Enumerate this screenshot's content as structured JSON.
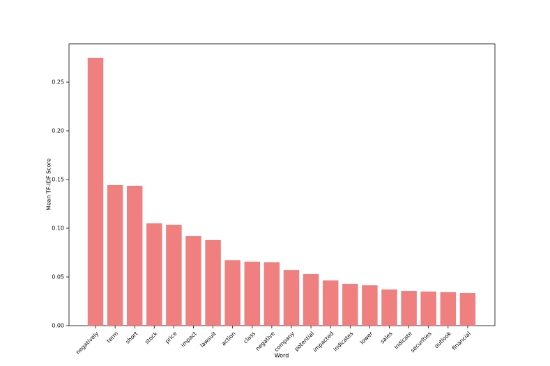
{
  "chart_data": {
    "type": "bar",
    "xlabel": "Word",
    "ylabel": "Mean TF-IDF Score",
    "color": "#f08080",
    "categories": [
      "negatively",
      "term",
      "short",
      "stock",
      "price",
      "impact",
      "lawsuit",
      "action",
      "class",
      "negative",
      "company",
      "potential",
      "impacted",
      "indicates",
      "lower",
      "sales",
      "indicate",
      "securities",
      "outlook",
      "financial"
    ],
    "values": [
      0.275,
      0.1443,
      0.1436,
      0.105,
      0.1036,
      0.0921,
      0.0879,
      0.0671,
      0.0657,
      0.065,
      0.0571,
      0.0529,
      0.0464,
      0.0429,
      0.0414,
      0.0371,
      0.0357,
      0.035,
      0.0343,
      0.0336
    ],
    "ylim": [
      0,
      0.2893
    ],
    "yticks": [
      {
        "value": 0,
        "label": "0.00"
      },
      {
        "value": 0.05,
        "label": "0.05"
      },
      {
        "value": 0.1,
        "label": "0.10"
      },
      {
        "value": 0.15,
        "label": "0.15"
      },
      {
        "value": 0.2,
        "label": "0.20"
      },
      {
        "value": 0.25,
        "label": "0.25"
      }
    ]
  }
}
